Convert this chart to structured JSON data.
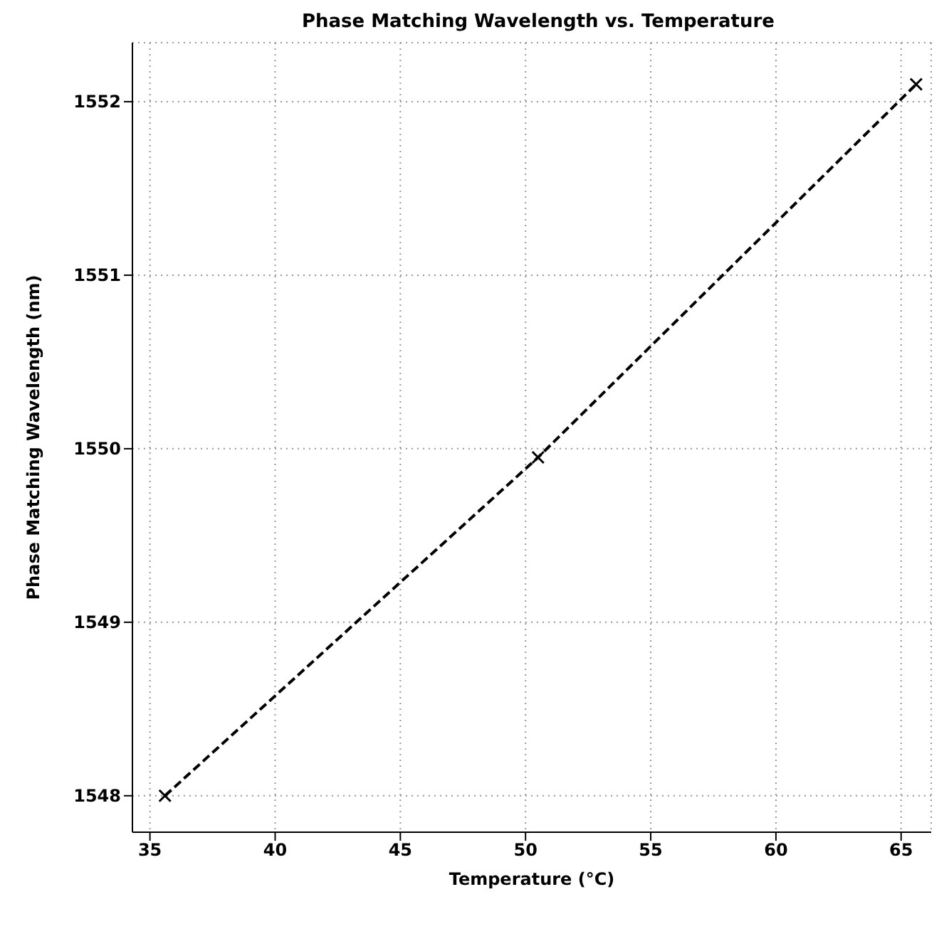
{
  "chart_data": {
    "type": "line",
    "title": "Phase Matching Wavelength vs. Temperature",
    "xlabel": "Temperature (°C)",
    "ylabel": "Phase Matching Wavelength (nm)",
    "x": [
      35.6,
      50.5,
      65.6
    ],
    "series": [
      {
        "color": "#000000",
        "values": [
          1548.0,
          1549.95,
          1552.1
        ]
      }
    ],
    "xlim": [
      34.3,
      66.2
    ],
    "xticks": [
      35,
      40,
      45,
      50,
      55,
      60,
      65
    ],
    "ylim": [
      1547.79,
      1552.34
    ],
    "yticks": [
      1548,
      1549,
      1550,
      1551,
      1552
    ],
    "grid": true,
    "marker": "cross",
    "line_style": "dashed"
  }
}
